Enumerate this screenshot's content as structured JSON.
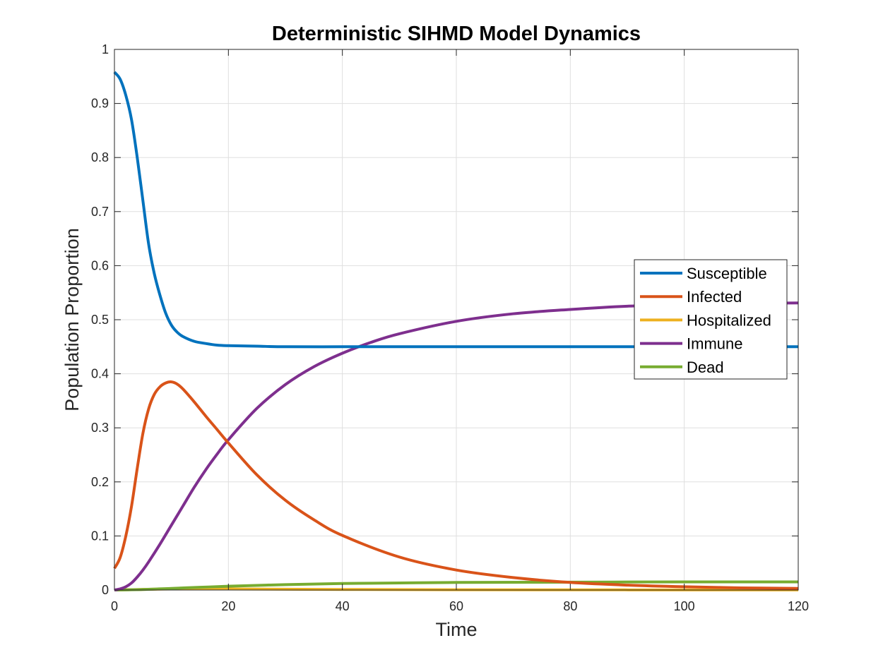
{
  "chart_data": {
    "type": "line",
    "title": "Deterministic SIHMD Model Dynamics",
    "xlabel": "Time",
    "ylabel": "Population Proportion",
    "xlim": [
      0,
      120
    ],
    "ylim": [
      0,
      1
    ],
    "xticks": [
      0,
      20,
      40,
      60,
      80,
      100,
      120
    ],
    "xtick_labels": [
      "0",
      "20",
      "40",
      "60",
      "80",
      "100",
      "120"
    ],
    "yticks": [
      0,
      0.1,
      0.2,
      0.3,
      0.4,
      0.5,
      0.6,
      0.7,
      0.8,
      0.9,
      1
    ],
    "ytick_labels": [
      "0",
      "0.1",
      "0.2",
      "0.3",
      "0.4",
      "0.5",
      "0.6",
      "0.7",
      "0.8",
      "0.9",
      "1"
    ],
    "grid": true,
    "legend_position": "right",
    "series": [
      {
        "name": "Susceptible",
        "color": "#0072BD",
        "x": [
          0,
          1,
          2,
          3,
          4,
          5,
          6,
          7,
          8,
          9,
          10,
          11,
          12,
          14,
          16,
          18,
          20,
          25,
          30,
          40,
          50,
          60,
          80,
          100,
          120
        ],
        "y": [
          0.958,
          0.945,
          0.915,
          0.87,
          0.8,
          0.72,
          0.64,
          0.585,
          0.545,
          0.512,
          0.49,
          0.477,
          0.469,
          0.46,
          0.456,
          0.453,
          0.452,
          0.451,
          0.45,
          0.45,
          0.45,
          0.45,
          0.45,
          0.45,
          0.45
        ]
      },
      {
        "name": "Infected",
        "color": "#D95319",
        "x": [
          0,
          1,
          2,
          3,
          4,
          5,
          6,
          7,
          8,
          9,
          10,
          11,
          12,
          14,
          16,
          18,
          20,
          25,
          30,
          35,
          40,
          50,
          60,
          70,
          80,
          90,
          100,
          110,
          120
        ],
        "y": [
          0.04,
          0.06,
          0.1,
          0.155,
          0.225,
          0.29,
          0.335,
          0.362,
          0.376,
          0.383,
          0.385,
          0.381,
          0.372,
          0.348,
          0.322,
          0.297,
          0.272,
          0.213,
          0.166,
          0.13,
          0.101,
          0.061,
          0.037,
          0.023,
          0.014,
          0.009,
          0.006,
          0.004,
          0.003
        ]
      },
      {
        "name": "Hospitalized",
        "color": "#EDB120",
        "x": [
          0,
          10,
          20,
          40,
          60,
          80,
          100,
          120
        ],
        "y": [
          0,
          0.002,
          0.002,
          0.001,
          0.0005,
          0.0003,
          0.0002,
          0.0001
        ]
      },
      {
        "name": "Immune",
        "color": "#7E2F8E",
        "x": [
          0,
          1,
          2,
          3,
          4,
          5,
          6,
          8,
          10,
          12,
          14,
          16,
          18,
          20,
          25,
          30,
          35,
          40,
          45,
          50,
          60,
          70,
          80,
          90,
          100,
          110,
          120
        ],
        "y": [
          0,
          0.002,
          0.006,
          0.013,
          0.024,
          0.037,
          0.052,
          0.085,
          0.12,
          0.155,
          0.19,
          0.222,
          0.251,
          0.278,
          0.336,
          0.38,
          0.413,
          0.438,
          0.458,
          0.474,
          0.497,
          0.511,
          0.519,
          0.525,
          0.528,
          0.53,
          0.531
        ]
      },
      {
        "name": "Dead",
        "color": "#77AC30",
        "x": [
          0,
          5,
          10,
          15,
          20,
          30,
          40,
          50,
          60,
          80,
          100,
          120
        ],
        "y": [
          0,
          0.001,
          0.003,
          0.005,
          0.007,
          0.01,
          0.012,
          0.013,
          0.014,
          0.0145,
          0.015,
          0.015
        ]
      }
    ]
  }
}
